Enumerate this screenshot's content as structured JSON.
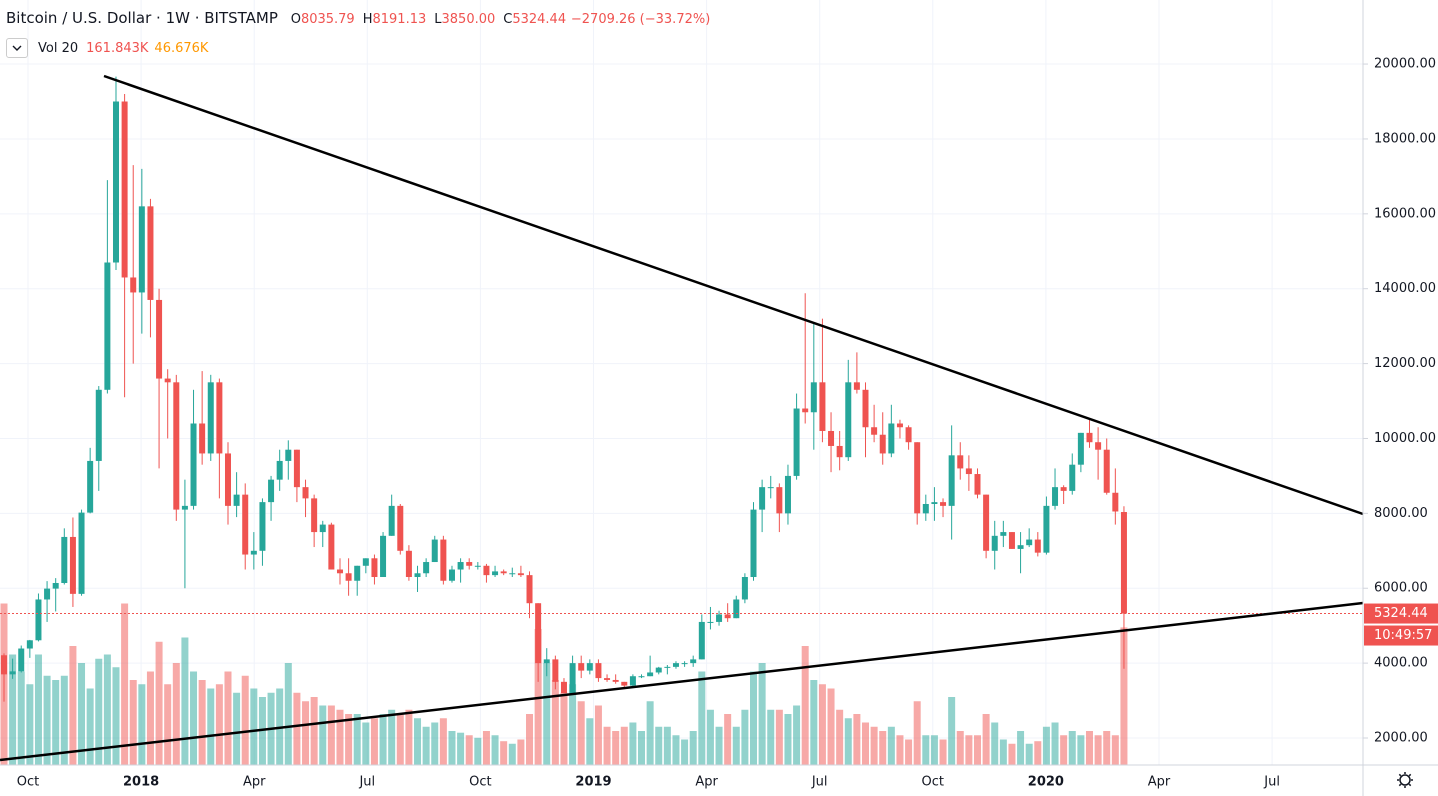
{
  "chart_data": {
    "type": "candlestick",
    "title": "Bitcoin / U.S. Dollar",
    "interval": "1W",
    "exchange": "BITSTAMP",
    "ohlc_text": [
      {
        "key": "O",
        "text": "8035.79"
      },
      {
        "key": "H",
        "text": "8191.13"
      },
      {
        "key": "L",
        "text": "3850.00"
      },
      {
        "key": "C",
        "text": "5324.44"
      }
    ],
    "change_text": "−2709.26 (−33.72%)",
    "volume_study": {
      "name": "Vol 20",
      "volume_text": "161.843K",
      "ma_text": "46.676K"
    },
    "countdown": "10:49:57",
    "up_color": "#26a69a",
    "down_color": "#ef5350",
    "open": [
      4210,
      3700,
      3780,
      4390,
      4610,
      5700,
      5990,
      6140,
      7370,
      5850,
      8020,
      9400,
      11300,
      14700,
      19000,
      14300,
      13900,
      16200,
      13700,
      11600,
      11500,
      8100,
      8200,
      10400,
      9600,
      11500,
      9600,
      8200,
      8500,
      6900,
      7000,
      8300,
      8900,
      9400,
      9700,
      8700,
      8400,
      7500,
      7700,
      6500,
      6400,
      6200,
      6600,
      6800,
      6300,
      7400,
      8200,
      7000,
      6300,
      6400,
      6700,
      7300,
      6200,
      6500,
      6700,
      6600,
      6600,
      6350,
      6450,
      6400,
      6400,
      6350,
      5600,
      4000,
      4100,
      3500,
      3200,
      4000,
      3800,
      4000,
      3600,
      3550,
      3500,
      3400,
      3650,
      3650,
      3750,
      3880,
      3900,
      4000,
      4000,
      4100,
      5100,
      5100,
      5300,
      5200,
      5700,
      6300,
      8100,
      8700,
      8700,
      8000,
      9000,
      10800,
      10700,
      11500,
      10200,
      9800,
      9500,
      11500,
      11300,
      10300,
      10100,
      9600,
      10400,
      10300,
      9900,
      8000,
      8250,
      8300,
      8200,
      9550,
      9200,
      9050,
      8500,
      7000,
      7400,
      7500,
      7050,
      7150,
      7300,
      6950,
      8200,
      8700,
      8600,
      9300,
      10150,
      9900,
      9700,
      8550,
      8035.79
    ],
    "high": [
      4260,
      4120,
      4470,
      4620,
      5860,
      6190,
      6270,
      7600,
      7890,
      8100,
      9750,
      11400,
      16900,
      19666,
      19200,
      17300,
      17200,
      16400,
      14000,
      11850,
      11700,
      8900,
      11300,
      11800,
      11700,
      11600,
      9900,
      9100,
      8800,
      7500,
      8400,
      9000,
      9700,
      9950,
      9700,
      8900,
      8500,
      7800,
      7750,
      6800,
      6800,
      6600,
      6800,
      6900,
      7500,
      8500,
      8250,
      7150,
      6600,
      6800,
      7400,
      7400,
      6600,
      6800,
      6800,
      6700,
      6650,
      6600,
      6500,
      6550,
      6600,
      6450,
      5600,
      4400,
      4200,
      3600,
      4200,
      4200,
      4100,
      4100,
      3700,
      3700,
      3500,
      3700,
      3700,
      4200,
      3900,
      3950,
      4050,
      4050,
      4200,
      5300,
      5500,
      5400,
      5600,
      5800,
      6400,
      8300,
      8900,
      9000,
      8800,
      9300,
      11200,
      13880,
      13100,
      13200,
      10700,
      10200,
      12100,
      12300,
      11500,
      10900,
      10700,
      10900,
      10500,
      10350,
      9900,
      8500,
      8700,
      8400,
      10350,
      9900,
      9550,
      9200,
      8500,
      7800,
      7800,
      7500,
      7500,
      7600,
      7500,
      8450,
      9200,
      8750,
      9600,
      10150,
      10500,
      10300,
      10000,
      9200,
      8191.13
    ],
    "low": [
      2972,
      3580,
      3750,
      4140,
      4580,
      5100,
      5380,
      6100,
      5500,
      5800,
      8000,
      8600,
      11200,
      14500,
      11100,
      12000,
      12800,
      12700,
      9200,
      10000,
      7800,
      6000,
      8100,
      9300,
      9400,
      8400,
      7700,
      7900,
      6500,
      6500,
      6600,
      7800,
      8600,
      8900,
      8300,
      7900,
      7100,
      7100,
      6500,
      6100,
      5800,
      5800,
      6400,
      6100,
      6300,
      7400,
      6900,
      6200,
      5900,
      6300,
      6700,
      6100,
      6150,
      6150,
      6500,
      6500,
      6150,
      6300,
      6350,
      6300,
      6300,
      5200,
      3500,
      3650,
      3300,
      3200,
      3200,
      3600,
      3700,
      3500,
      3500,
      3450,
      3350,
      3350,
      3600,
      3650,
      3700,
      3700,
      3850,
      3900,
      3900,
      4100,
      4900,
      5000,
      5100,
      5200,
      5600,
      6200,
      7500,
      8400,
      7500,
      7700,
      8900,
      10400,
      9700,
      9900,
      9100,
      9150,
      9400,
      11200,
      9500,
      9900,
      9300,
      9500,
      10000,
      9700,
      7700,
      7800,
      7800,
      7900,
      7300,
      8900,
      8600,
      8400,
      6800,
      6500,
      7100,
      7050,
      6400,
      7100,
      6850,
      6900,
      8100,
      8250,
      8500,
      9100,
      9750,
      8900,
      8500,
      7700,
      3850
    ],
    "close": [
      3700,
      3780,
      4390,
      4610,
      5700,
      5990,
      6140,
      7370,
      5850,
      8020,
      9400,
      11300,
      14700,
      19000,
      14300,
      13900,
      16200,
      13700,
      11600,
      11500,
      8100,
      8200,
      10400,
      9600,
      11500,
      9600,
      8200,
      8500,
      6900,
      7000,
      8300,
      8900,
      9400,
      9700,
      8700,
      8400,
      7500,
      7700,
      6500,
      6400,
      6200,
      6600,
      6800,
      6300,
      7400,
      8200,
      7000,
      6300,
      6400,
      6700,
      7300,
      6200,
      6500,
      6700,
      6600,
      6600,
      6350,
      6450,
      6400,
      6400,
      6350,
      5600,
      4000,
      4100,
      3500,
      3200,
      4000,
      3800,
      4000,
      3600,
      3550,
      3500,
      3400,
      3650,
      3650,
      3750,
      3880,
      3900,
      4000,
      4000,
      4100,
      5100,
      5100,
      5300,
      5200,
      5700,
      6300,
      8100,
      8700,
      8700,
      8000,
      9000,
      10800,
      10700,
      11500,
      10200,
      9800,
      9500,
      11500,
      11300,
      10300,
      10100,
      9600,
      10400,
      10300,
      9900,
      8000,
      8250,
      8300,
      8200,
      9550,
      9200,
      9050,
      8500,
      7000,
      7400,
      7500,
      7050,
      7150,
      7300,
      6950,
      8200,
      8700,
      8600,
      9300,
      10150,
      9900,
      9700,
      8550,
      8050,
      5324.44
    ],
    "volume": [
      190000,
      130000,
      110000,
      95000,
      130000,
      105000,
      100000,
      105000,
      140000,
      120000,
      90000,
      125000,
      130000,
      115000,
      190000,
      100000,
      95000,
      110000,
      145000,
      95000,
      120000,
      150000,
      110000,
      100000,
      90000,
      95000,
      110000,
      85000,
      105000,
      90000,
      80000,
      85000,
      90000,
      120000,
      85000,
      75000,
      80000,
      70000,
      70000,
      65000,
      60000,
      60000,
      50000,
      55000,
      60000,
      65000,
      60000,
      65000,
      55000,
      45000,
      50000,
      55000,
      40000,
      38000,
      35000,
      32000,
      40000,
      35000,
      28000,
      25000,
      30000,
      60000,
      160000,
      120000,
      100000,
      85000,
      95000,
      75000,
      55000,
      70000,
      45000,
      40000,
      45000,
      50000,
      40000,
      75000,
      45000,
      45000,
      35000,
      30000,
      40000,
      110000,
      65000,
      45000,
      60000,
      45000,
      65000,
      110000,
      120000,
      65000,
      65000,
      60000,
      70000,
      140000,
      100000,
      95000,
      90000,
      65000,
      55000,
      60000,
      50000,
      45000,
      40000,
      45000,
      35000,
      30000,
      75000,
      35000,
      35000,
      30000,
      80000,
      40000,
      35000,
      35000,
      60000,
      50000,
      30000,
      25000,
      40000,
      25000,
      28000,
      45000,
      50000,
      35000,
      40000,
      35000,
      40000,
      35000,
      40000,
      35000,
      161843
    ],
    "ylim": [
      1279,
      21711
    ],
    "volume_ylim": [
      0,
      900000
    ],
    "yticks": [
      {
        "value": 2000,
        "label": "2000.00"
      },
      {
        "value": 4000,
        "label": "4000.00"
      },
      {
        "value": 6000,
        "label": "6000.00"
      },
      {
        "value": 8000,
        "label": "8000.00"
      },
      {
        "value": 10000,
        "label": "10000.00"
      },
      {
        "value": 12000,
        "label": "12000.00"
      },
      {
        "value": 14000,
        "label": "14000.00"
      },
      {
        "value": 16000,
        "label": "16000.00"
      },
      {
        "value": 18000,
        "label": "18000.00"
      },
      {
        "value": 20000,
        "label": "20000.00"
      }
    ],
    "xtick_labels": [
      "Oct",
      "2018",
      "Apr",
      "Jul",
      "Oct",
      "2019",
      "Apr",
      "Jul",
      "Oct",
      "2020",
      "Apr",
      "Jul"
    ],
    "grid": true
  }
}
